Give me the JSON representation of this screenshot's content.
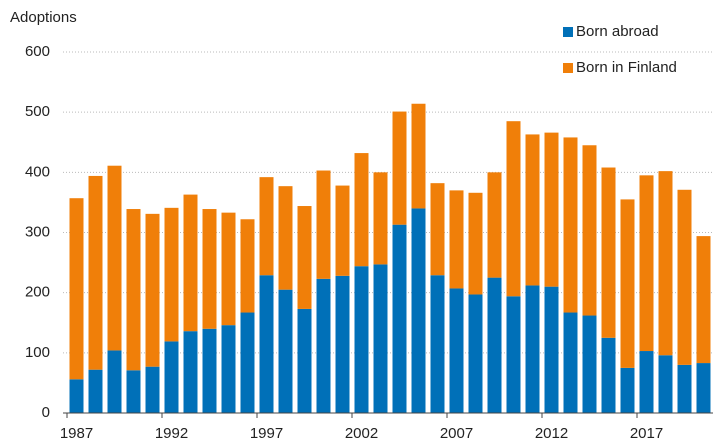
{
  "chart_data": {
    "type": "stacked_bar",
    "y_label": "Adoptions",
    "categories": [
      "1987",
      null,
      null,
      null,
      null,
      "1992",
      null,
      null,
      null,
      null,
      "1997",
      null,
      null,
      null,
      null,
      "2002",
      null,
      null,
      null,
      null,
      "2007",
      null,
      null,
      null,
      null,
      "2012",
      null,
      null,
      null,
      null,
      "2017",
      null,
      null,
      null
    ],
    "series": [
      {
        "name": "Born abroad",
        "color": "#0070b8",
        "values": [
          56,
          72,
          104,
          71,
          77,
          119,
          136,
          140,
          146,
          167,
          229,
          205,
          173,
          223,
          228,
          244,
          247,
          313,
          340,
          229,
          207,
          197,
          225,
          194,
          212,
          210,
          167,
          162,
          125,
          75,
          103,
          96,
          80,
          83
        ]
      },
      {
        "name": "Born in Finland",
        "color": "#f07f09",
        "values": [
          301,
          322,
          307,
          268,
          254,
          222,
          227,
          199,
          187,
          155,
          163,
          172,
          171,
          180,
          150,
          188,
          153,
          188,
          174,
          153,
          163,
          169,
          175,
          291,
          251,
          256,
          291,
          283,
          283,
          280,
          292,
          306,
          291,
          211
        ]
      }
    ],
    "ylim": [
      0,
      600
    ],
    "yticks": [
      0,
      100,
      200,
      300,
      400,
      500,
      600
    ],
    "grid": true,
    "legend": "top-right"
  }
}
